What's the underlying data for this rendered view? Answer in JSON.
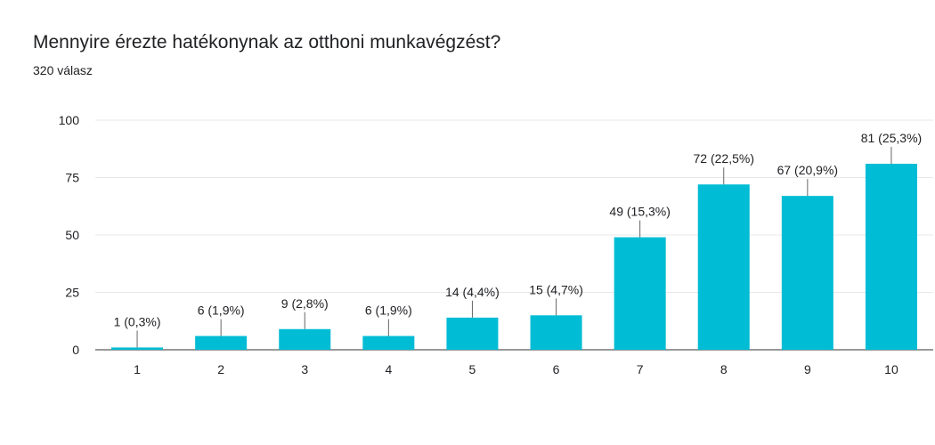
{
  "header": {
    "title": "Mennyire érezte hatékonynak az otthoni munkavégzést?",
    "subtitle": "320 válasz"
  },
  "chart_data": {
    "type": "bar",
    "categories": [
      "1",
      "2",
      "3",
      "4",
      "5",
      "6",
      "7",
      "8",
      "9",
      "10"
    ],
    "values": [
      1,
      6,
      9,
      6,
      14,
      15,
      49,
      72,
      67,
      81
    ],
    "data_labels": [
      "1 (0,3%)",
      "6 (1,9%)",
      "9 (2,8%)",
      "6 (1,9%)",
      "14 (4,4%)",
      "15 (4,7%)",
      "49 (15,3%)",
      "72 (22,5%)",
      "67 (20,9%)",
      "81 (25,3%)"
    ],
    "yticks": [
      "0",
      "25",
      "50",
      "75",
      "100"
    ],
    "ylim": [
      0,
      100
    ],
    "grid": true,
    "bar_color": "#00bcd4",
    "grid_color": "#e8e8e8",
    "axis_color": "#333333",
    "text_color": "#202124",
    "xlabel": "",
    "ylabel": ""
  }
}
